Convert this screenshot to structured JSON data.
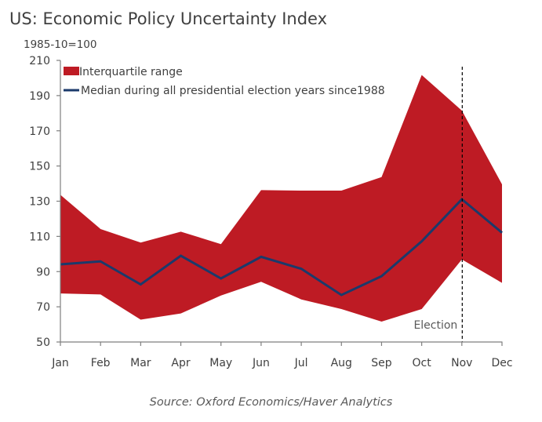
{
  "chart_data": {
    "type": "area",
    "title": "US: Economic Policy Uncertainty Index",
    "subtitle": "1985-10=100",
    "source": "Source: Oxford Economics/Haver Analytics",
    "xlabel": "",
    "ylabel": "",
    "categories": [
      "Jan",
      "Feb",
      "Mar",
      "Apr",
      "May",
      "Jun",
      "Jul",
      "Aug",
      "Sep",
      "Oct",
      "Nov",
      "Dec"
    ],
    "ylim": [
      50,
      210
    ],
    "yticks": [
      50,
      70,
      90,
      110,
      130,
      150,
      170,
      190,
      210
    ],
    "grid": false,
    "legend_position": "top-left",
    "series": [
      {
        "name": "Interquartile range",
        "kind": "band",
        "color": "#BE1B24",
        "upper": [
          133.6,
          114.2,
          106.5,
          112.7,
          105.6,
          136.3,
          136,
          136,
          143.7,
          201.7,
          181.5,
          139.6
        ],
        "lower": [
          77.6,
          77,
          62.7,
          66.2,
          76.4,
          84.2,
          74.2,
          68.7,
          61.6,
          68.7,
          96.9,
          83.6
        ]
      },
      {
        "name": "Median during all presidential election years since1988",
        "kind": "line",
        "color": "#1B3A6B",
        "values": [
          94.1,
          95.8,
          82.7,
          99,
          86.1,
          98.4,
          91.6,
          76.7,
          87.4,
          107.2,
          131.1,
          112.1
        ]
      }
    ],
    "annotations": [
      {
        "type": "vline",
        "x": "Nov",
        "label": "Election",
        "style": "dashed",
        "color": "#000000"
      }
    ]
  }
}
